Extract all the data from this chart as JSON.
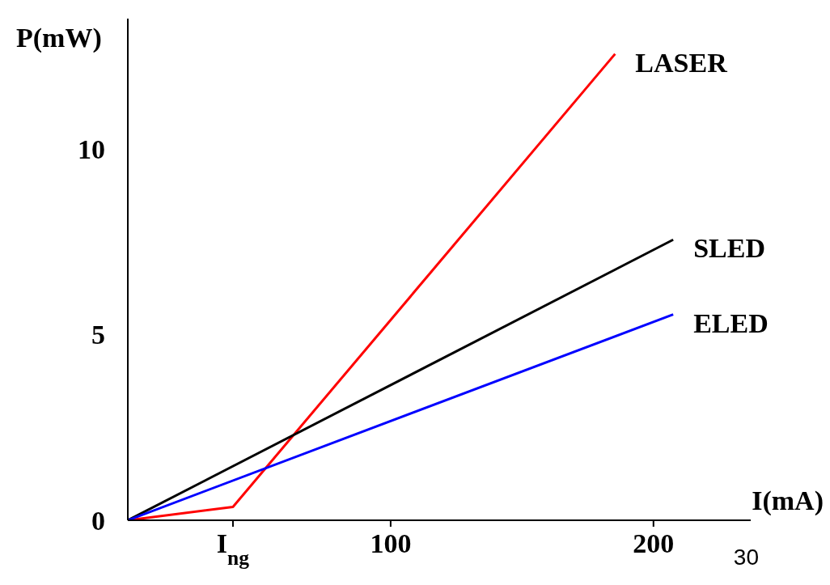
{
  "chart_data": {
    "type": "line",
    "xlabel": "I(mA)",
    "ylabel": "P(mW)",
    "xlim": [
      0,
      237
    ],
    "ylim": [
      0,
      13.5
    ],
    "xticks": [
      {
        "value": 40,
        "label": "I$_{ng}$"
      },
      100,
      200
    ],
    "yticks": [
      0,
      5,
      10
    ],
    "series": [
      {
        "name": "LASER",
        "color": "#ff0000",
        "x": [
          0,
          40,
          185.4
        ],
        "values": [
          0,
          0.36,
          12.55
        ]
      },
      {
        "name": "SLED",
        "color": "#000000",
        "x": [
          0,
          207.5
        ],
        "values": [
          0,
          7.55
        ]
      },
      {
        "name": "ELED",
        "color": "#0000ff",
        "x": [
          0,
          207.5
        ],
        "values": [
          0,
          5.54
        ]
      }
    ],
    "annotations": [
      "30"
    ],
    "grid": false,
    "legend": false,
    "marker": "none",
    "line_style": "solid"
  }
}
